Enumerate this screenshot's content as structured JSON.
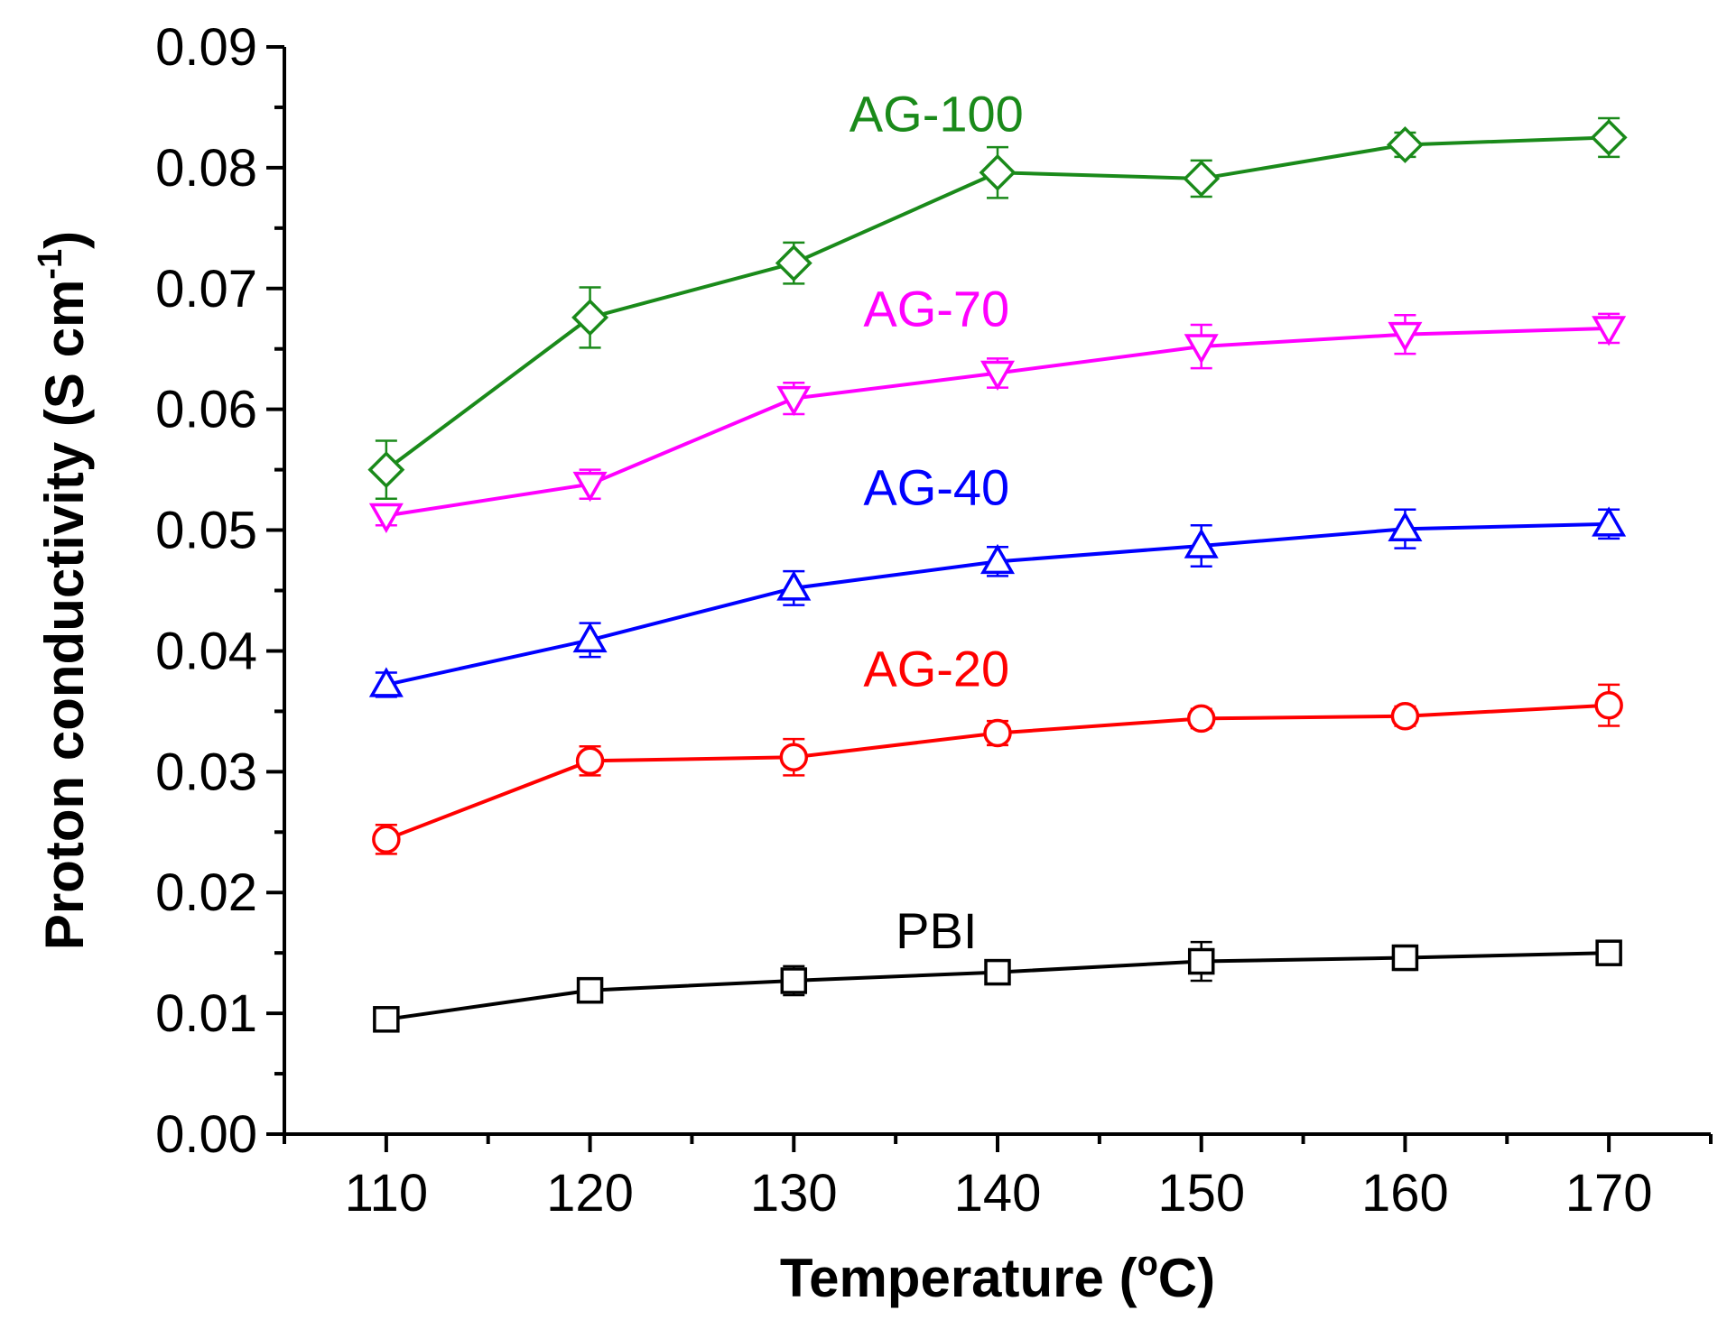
{
  "chart_data": {
    "type": "line",
    "title": "",
    "xlabel": "Temperature",
    "xlabel_unit_open": "(",
    "xlabel_unit_sup": "o",
    "xlabel_unit_rest": "C)",
    "ylabel": "Proton conductivity (S cm",
    "ylabel_sup": "-1",
    "ylabel_close": ")",
    "xlim": [
      105,
      175
    ],
    "ylim": [
      0.0,
      0.09
    ],
    "x_ticks": [
      110,
      120,
      130,
      140,
      150,
      160,
      170
    ],
    "x_tick_labels": [
      "110",
      "120",
      "130",
      "140",
      "150",
      "160",
      "170"
    ],
    "y_ticks": [
      0.0,
      0.01,
      0.02,
      0.03,
      0.04,
      0.05,
      0.06,
      0.07,
      0.08,
      0.09
    ],
    "y_tick_labels": [
      "0.00",
      "0.01",
      "0.02",
      "0.03",
      "0.04",
      "0.05",
      "0.06",
      "0.07",
      "0.08",
      "0.09"
    ],
    "x": [
      110,
      120,
      130,
      140,
      150,
      160,
      170
    ],
    "series": [
      {
        "name": "PBI",
        "color": "#000000",
        "marker": "square",
        "values": [
          0.0095,
          0.0119,
          0.0127,
          0.0134,
          0.0143,
          0.0146,
          0.015
        ],
        "errors": [
          0.0008,
          0.001,
          0.0012,
          0.0008,
          0.0016,
          0.001,
          0.0006
        ],
        "label_x": 137,
        "label_y": 0.0154
      },
      {
        "name": "AG-20",
        "color": "#ff0000",
        "marker": "circle",
        "values": [
          0.0244,
          0.0309,
          0.0312,
          0.0332,
          0.0344,
          0.0346,
          0.0355
        ],
        "errors": [
          0.0012,
          0.0012,
          0.0015,
          0.001,
          0.0008,
          0.0008,
          0.0017
        ],
        "label_x": 137,
        "label_y": 0.0371
      },
      {
        "name": "AG-40",
        "color": "#0000ff",
        "marker": "triangle-up",
        "values": [
          0.0372,
          0.0409,
          0.0452,
          0.0474,
          0.0487,
          0.0501,
          0.0505
        ],
        "errors": [
          0.001,
          0.0014,
          0.0014,
          0.0012,
          0.0017,
          0.0016,
          0.0012
        ],
        "label_x": 137,
        "label_y": 0.0521
      },
      {
        "name": "AG-70",
        "color": "#ff00ff",
        "marker": "triangle-down",
        "values": [
          0.0512,
          0.0538,
          0.0609,
          0.063,
          0.0652,
          0.0662,
          0.0667
        ],
        "errors": [
          0.0008,
          0.0012,
          0.0013,
          0.0012,
          0.0018,
          0.0016,
          0.0012
        ],
        "label_x": 137,
        "label_y": 0.0669
      },
      {
        "name": "AG-100",
        "color": "#1a8a1a",
        "marker": "diamond",
        "values": [
          0.055,
          0.0676,
          0.0721,
          0.0796,
          0.0791,
          0.0819,
          0.0825
        ],
        "errors": [
          0.0024,
          0.0025,
          0.0017,
          0.0021,
          0.0015,
          0.001,
          0.0016
        ],
        "label_x": 137,
        "label_y": 0.083
      }
    ],
    "legend": "inline-labels",
    "grid": false
  }
}
